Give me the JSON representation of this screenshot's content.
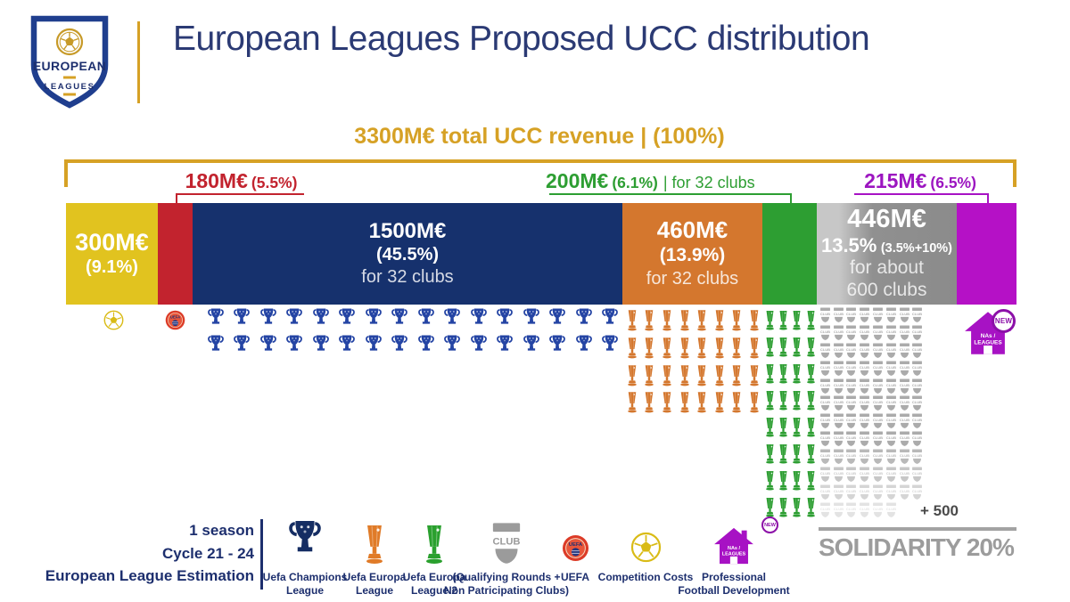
{
  "logo": {
    "top": "EUROPEAN",
    "bottom": "LEAGUES"
  },
  "title": "European Leagues Proposed UCC distribution",
  "total_label": "3300M€  total UCC revenue | (100%)",
  "callouts": {
    "uefa": {
      "amount": "180M€",
      "pct": "(5.5%)"
    },
    "uel2": {
      "amount": "200M€",
      "pct": "(6.1%)",
      "note": "| for 32 clubs"
    },
    "pfd": {
      "amount": "215M€",
      "pct": "(6.5%)"
    }
  },
  "bar": {
    "competition_costs": {
      "amount": "300M€",
      "pct": "(9.1%)"
    },
    "ucl": {
      "amount": "1500M€",
      "pct": "(45.5%)",
      "note": "for 32 clubs"
    },
    "uel": {
      "amount": "460M€",
      "pct": "(13.9%)",
      "note": "for 32 clubs"
    },
    "solidarity": {
      "amount": "446M€",
      "pct_main": "13.5%",
      "pct_detail": "(3.5%+10%)",
      "note1": "for about",
      "note2": "600 clubs"
    }
  },
  "icons": {
    "champions": {
      "rows": 2,
      "cols": 16,
      "color": "#2444a4",
      "icon_name": "champions-league-trophy-icon"
    },
    "europa": {
      "rows": 4,
      "cols": 8,
      "color": "#d4772e",
      "icon_name": "europa-league-trophy-icon"
    },
    "europa2": {
      "rows": 8,
      "cols": 4,
      "color": "#2d9e32",
      "icon_name": "europa-league-2-trophy-icon"
    },
    "clubs": {
      "rows": 12,
      "cols": 8,
      "last_row_cols": 6,
      "fade_from": 8,
      "color": "#ababab",
      "icon_name": "club-badge-icon"
    }
  },
  "plus_label": "+ 500",
  "solidarity_label": "SOLIDARITY 20%",
  "house_label": {
    "line1": "NAs /",
    "line2": "LEAGUES",
    "badge": "NEW"
  },
  "estimation": {
    "line1": "1 season",
    "line2": "Cycle 21 - 24",
    "line3": "European League Estimation"
  },
  "legend": [
    {
      "id": "uefa-champions-league",
      "shape": "champions",
      "color": "#152d63",
      "label1": "Uefa Champions",
      "label2": "League"
    },
    {
      "id": "uefa-europa-league",
      "shape": "europa",
      "color": "#e07b28",
      "label1": "Uefa Europa",
      "label2": "League"
    },
    {
      "id": "uefa-europa-league-2",
      "shape": "europa",
      "color": "#2aa02e",
      "label1": "Uefa Europa",
      "label2": "League 2"
    },
    {
      "id": "qualifying-clubs",
      "shape": "club",
      "color": "#9b9b9b",
      "label1": "(Qualifying Rounds +",
      "label2": "Non Patricipating Clubs)"
    },
    {
      "id": "uefa",
      "shape": "uefa",
      "label1": "UEFA",
      "label2": ""
    },
    {
      "id": "competition-costs",
      "shape": "ball",
      "color": "#d9bb16",
      "label1": "Competition Costs",
      "label2": ""
    },
    {
      "id": "professional-football-development",
      "shape": "house",
      "color": "#a712c4",
      "badge": "NEW",
      "label1": "Professional",
      "label2": "Football Development"
    }
  ],
  "colors": {
    "gold": "#d6a125",
    "title_navy": "#2b3a74",
    "legend_navy": "#1d2f6e",
    "yellow": "#e1c31f",
    "red": "#c2232e",
    "navy": "#16316d",
    "orange": "#d4772e",
    "green": "#2d9e32",
    "gray_light": "#c7c7c7",
    "gray_dark": "#8b8b8b",
    "magenta": "#b511c6",
    "purple_label": "#9c15c0",
    "solidarity_gray": "#9c9c9c",
    "ball": "#d9bb16",
    "pfd": "#a712c4"
  },
  "chart_data": {
    "type": "bar",
    "title": "European Leagues Proposed UCC distribution",
    "subtitle": "3300M€ total UCC revenue | (100%)",
    "total_meur": 3300,
    "categories": [
      "Competition Costs",
      "UEFA",
      "Uefa Champions League",
      "Uefa Europa League",
      "Uefa Europa League 2",
      "Solidarity (Qualifying Rounds + Non Patricipating Clubs)",
      "Professional Football Development (NAs / Leagues)"
    ],
    "values_meur": [
      300,
      180,
      1500,
      460,
      200,
      446,
      215
    ],
    "pct": [
      9.1,
      5.5,
      45.5,
      13.9,
      6.1,
      13.5,
      6.5
    ],
    "clubs": [
      null,
      null,
      32,
      32,
      32,
      "about 600 (+ 500)",
      null
    ],
    "colors": [
      "#e1c31f",
      "#c2232e",
      "#16316d",
      "#d4772e",
      "#2d9e32",
      "#8b8b8b",
      "#b511c6"
    ],
    "annotations": [
      "SOLIDARITY 20%",
      "Solidarity split: 13.5% (3.5%+10%)",
      "1 season",
      "Cycle 21 - 24",
      "European League Estimation"
    ],
    "legend_position": "bottom",
    "orientation": "horizontal-stacked"
  }
}
